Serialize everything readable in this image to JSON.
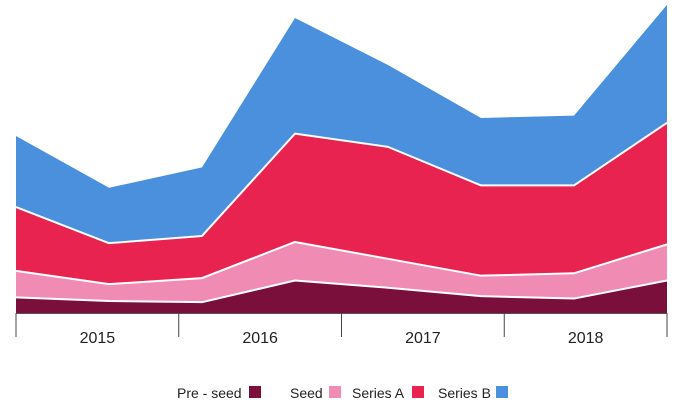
{
  "chart_data": {
    "type": "area",
    "stacked": true,
    "x_tick_labels": [
      "2015",
      "2016",
      "2017",
      "2018"
    ],
    "x": [
      1,
      2,
      3,
      4,
      5,
      6,
      7,
      8
    ],
    "series": [
      {
        "name": "Pre - seed",
        "color": "#7a0f3c",
        "values": [
          13,
          10,
          9,
          27,
          21,
          14,
          12,
          27
        ]
      },
      {
        "name": "Seed",
        "color": "#f08cb4",
        "values": [
          22,
          14,
          20,
          32,
          24,
          17,
          21,
          30
        ]
      },
      {
        "name": "Series A",
        "color": "#e8234f",
        "values": [
          53,
          34,
          35,
          90,
          93,
          75,
          73,
          101
        ]
      },
      {
        "name": "Series B",
        "color": "#4a90dc",
        "values": [
          59,
          46,
          57,
          96,
          68,
          56,
          58,
          98
        ]
      }
    ],
    "ylim": [
      0,
      260
    ],
    "grid": false,
    "legend": "bottom-center"
  }
}
